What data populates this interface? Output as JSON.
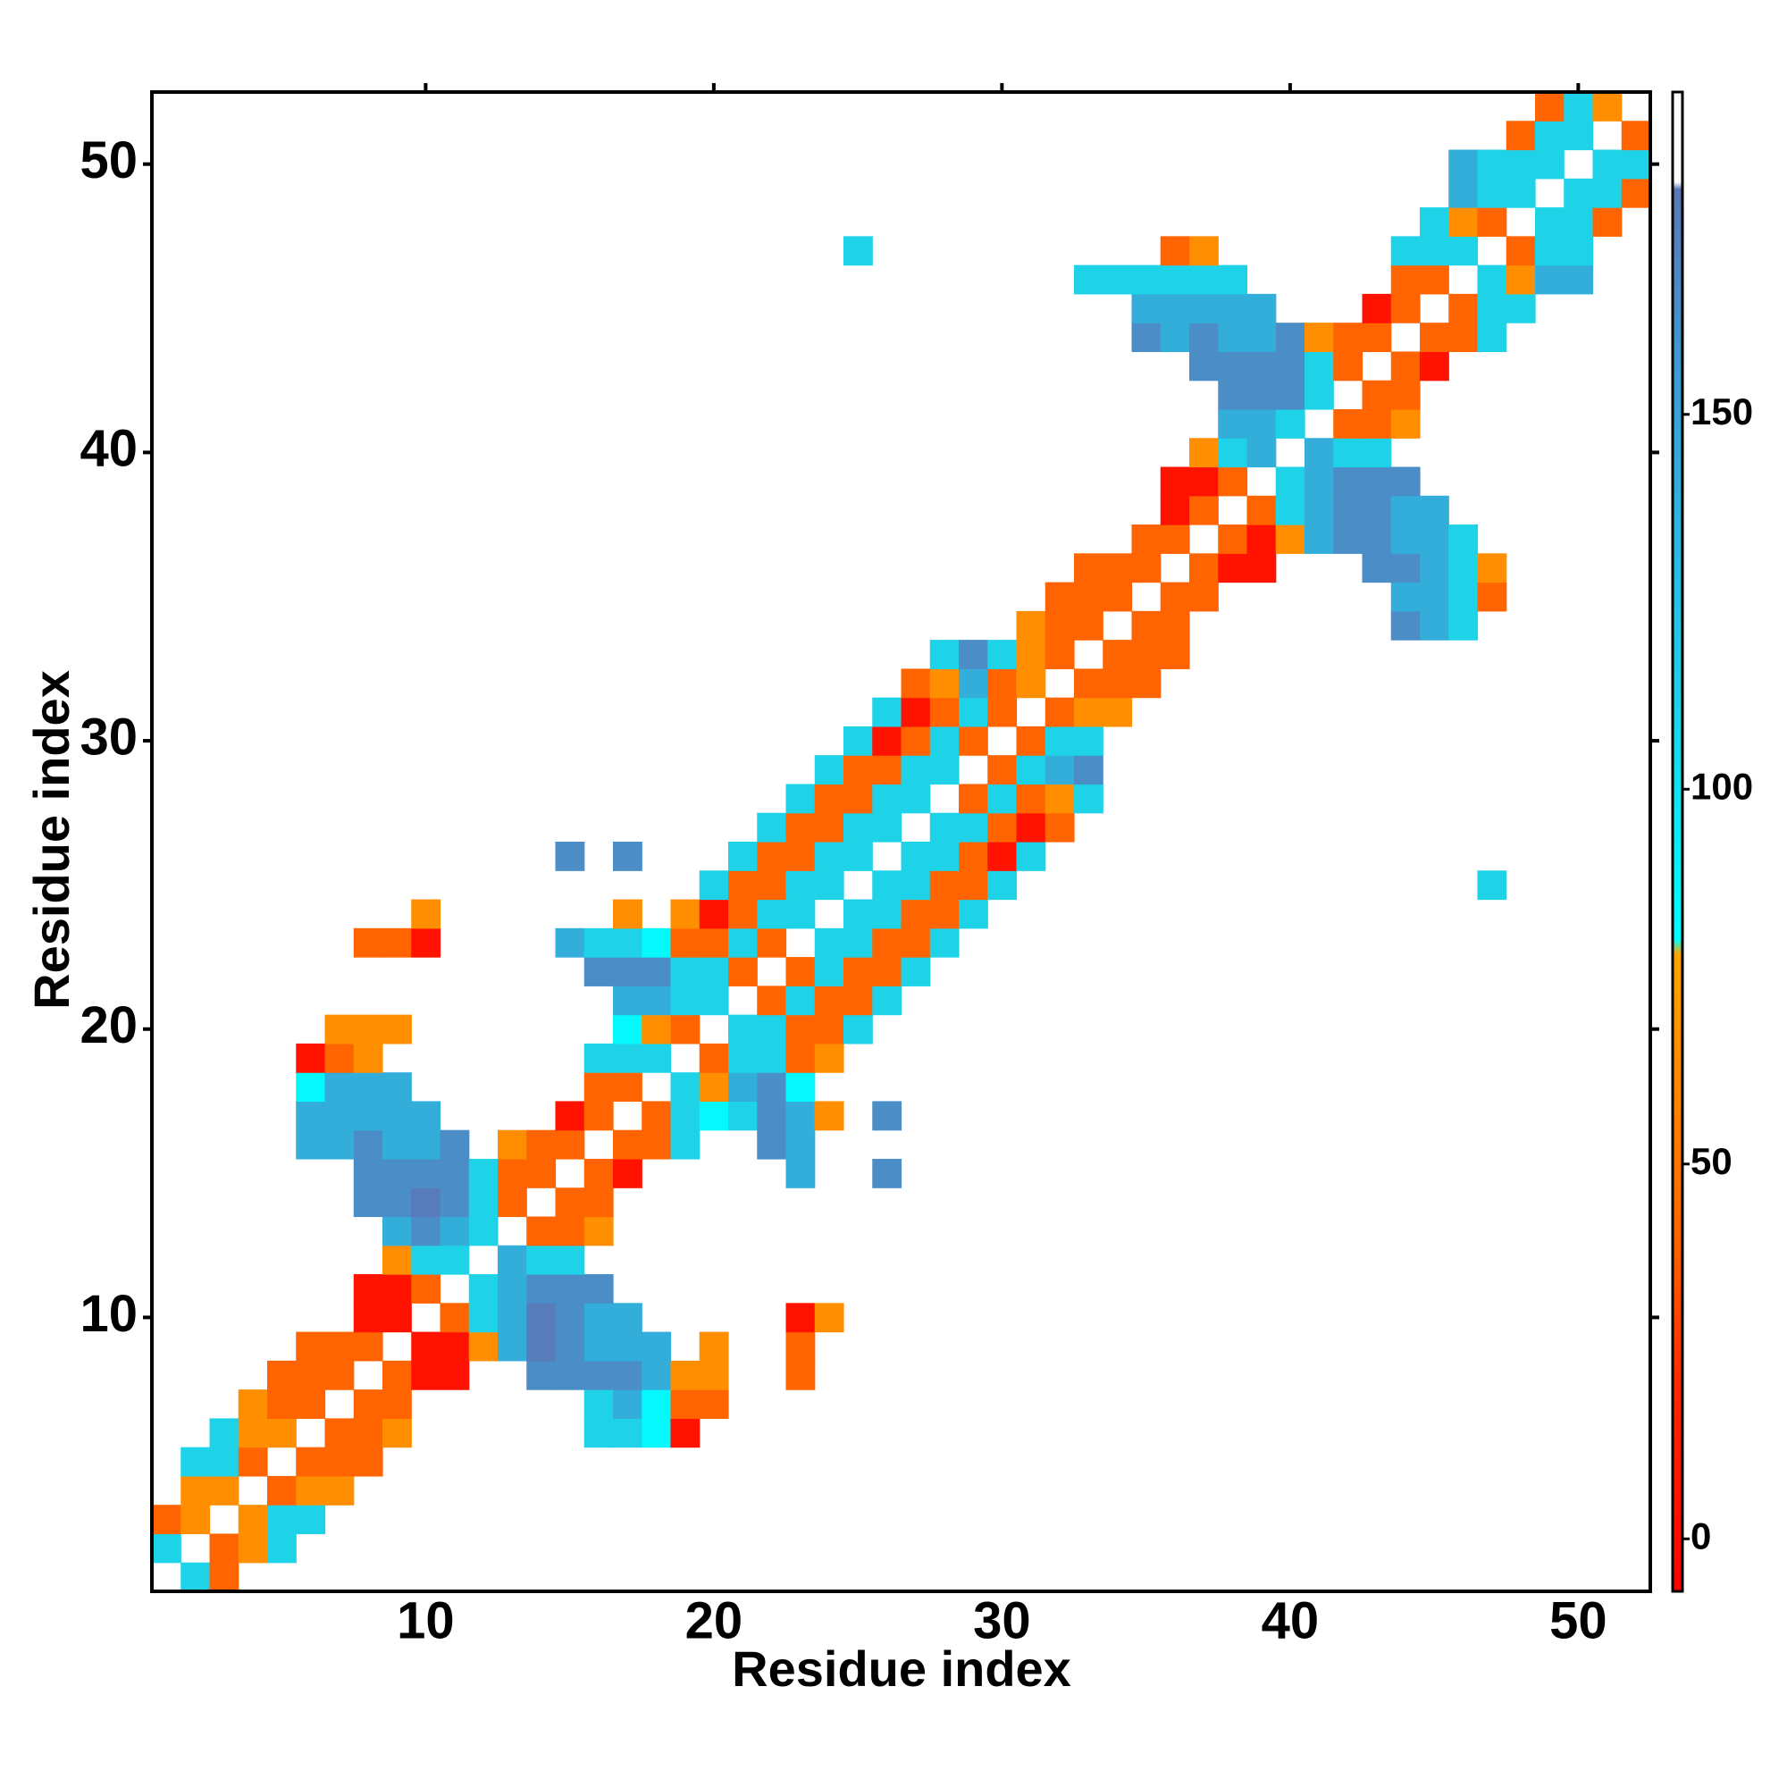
{
  "chart_data": {
    "type": "heatmap",
    "x_label": "Residue index",
    "y_label": "Residue index",
    "xlim": [
      0.5,
      52.5
    ],
    "ylim": [
      0.5,
      52.5
    ],
    "xticks": [
      10,
      20,
      30,
      40,
      50
    ],
    "yticks": [
      10,
      20,
      30,
      40,
      50
    ],
    "zlim": [
      -7,
      193
    ],
    "zticks": [
      0,
      50,
      100,
      150
    ],
    "colorscale": [
      [
        -7,
        "#ff0000"
      ],
      [
        20,
        "#ff2800"
      ],
      [
        40,
        "#ff6400"
      ],
      [
        78,
        "#ffa500"
      ],
      [
        80,
        "#00ffff"
      ],
      [
        110,
        "#1ed3e8"
      ],
      [
        150,
        "#3aa2d6"
      ],
      [
        180,
        "#5a78b8"
      ],
      [
        181,
        "#ffffff"
      ],
      [
        193,
        "#ffffff"
      ]
    ],
    "rows": [
      {
        "y": 1,
        "x": [
          2,
          3
        ],
        "values": [
          110,
          40
        ]
      },
      {
        "y": 2,
        "x": [
          1,
          3,
          4,
          5
        ],
        "values": [
          110,
          40,
          65,
          110
        ]
      },
      {
        "y": 3,
        "x": [
          1,
          2,
          4,
          5,
          6
        ],
        "values": [
          40,
          65,
          65,
          110,
          110
        ]
      },
      {
        "y": 4,
        "x": [
          2,
          3,
          5,
          6,
          7
        ],
        "values": [
          65,
          65,
          40,
          65,
          65
        ]
      },
      {
        "y": 5,
        "x": [
          2,
          3,
          4,
          6,
          7,
          8
        ],
        "values": [
          110,
          110,
          40,
          40,
          40,
          40
        ]
      },
      {
        "y": 6,
        "x": [
          3,
          4,
          5,
          7,
          8,
          9,
          16,
          17,
          18,
          19
        ],
        "values": [
          110,
          65,
          65,
          40,
          40,
          65,
          110,
          110,
          85,
          5
        ]
      },
      {
        "y": 7,
        "x": [
          4,
          5,
          6,
          8,
          9,
          16,
          17,
          18,
          19,
          20
        ],
        "values": [
          65,
          40,
          40,
          40,
          40,
          110,
          140,
          85,
          40,
          40
        ]
      },
      {
        "y": 8,
        "x": [
          5,
          6,
          7,
          9,
          10,
          11,
          14,
          15,
          16,
          17,
          18,
          19,
          20,
          23
        ],
        "values": [
          40,
          40,
          40,
          40,
          5,
          5,
          165,
          165,
          165,
          165,
          140,
          65,
          65,
          40
        ]
      },
      {
        "y": 9,
        "x": [
          6,
          7,
          8,
          10,
          11,
          12,
          13,
          14,
          15,
          16,
          17,
          18,
          20,
          23
        ],
        "values": [
          40,
          40,
          40,
          5,
          5,
          65,
          140,
          178,
          165,
          140,
          140,
          140,
          65,
          40
        ]
      },
      {
        "y": 10,
        "x": [
          8,
          9,
          11,
          12,
          13,
          14,
          15,
          16,
          17,
          23,
          24
        ],
        "values": [
          5,
          5,
          40,
          110,
          140,
          178,
          165,
          140,
          140,
          5,
          65
        ]
      },
      {
        "y": 11,
        "x": [
          8,
          9,
          10,
          12,
          13,
          14,
          15,
          16
        ],
        "values": [
          5,
          5,
          40,
          110,
          140,
          165,
          165,
          165
        ]
      },
      {
        "y": 12,
        "x": [
          9,
          10,
          11,
          13,
          14,
          15
        ],
        "values": [
          65,
          110,
          110,
          140,
          110,
          110
        ]
      },
      {
        "y": 13,
        "x": [
          9,
          10,
          11,
          12,
          14,
          15,
          16
        ],
        "values": [
          140,
          165,
          140,
          110,
          40,
          40,
          65
        ]
      },
      {
        "y": 14,
        "x": [
          8,
          9,
          10,
          11,
          12,
          13,
          15,
          16
        ],
        "values": [
          165,
          165,
          178,
          165,
          110,
          40,
          40,
          40
        ]
      },
      {
        "y": 15,
        "x": [
          8,
          9,
          10,
          11,
          12,
          13,
          14,
          16,
          17,
          23,
          26
        ],
        "values": [
          165,
          165,
          165,
          165,
          110,
          40,
          40,
          40,
          5,
          140,
          165
        ]
      },
      {
        "y": 16,
        "x": [
          6,
          7,
          8,
          9,
          10,
          11,
          13,
          14,
          15,
          17,
          18,
          19,
          22,
          23
        ],
        "values": [
          140,
          140,
          165,
          140,
          140,
          165,
          65,
          40,
          40,
          40,
          40,
          110,
          165,
          140
        ]
      },
      {
        "y": 17,
        "x": [
          6,
          7,
          8,
          9,
          10,
          15,
          16,
          18,
          19,
          20,
          21,
          22,
          23,
          24,
          26
        ],
        "values": [
          140,
          140,
          140,
          140,
          140,
          5,
          40,
          40,
          110,
          85,
          110,
          165,
          140,
          65,
          165
        ]
      },
      {
        "y": 18,
        "x": [
          6,
          7,
          8,
          9,
          16,
          17,
          19,
          20,
          21,
          22,
          23
        ],
        "values": [
          85,
          140,
          140,
          140,
          40,
          40,
          110,
          65,
          140,
          165,
          85
        ]
      },
      {
        "y": 19,
        "x": [
          6,
          7,
          8,
          16,
          17,
          18,
          20,
          21,
          22,
          23,
          24
        ],
        "values": [
          5,
          40,
          65,
          110,
          110,
          110,
          40,
          110,
          110,
          40,
          65
        ]
      },
      {
        "y": 20,
        "x": [
          7,
          8,
          9,
          17,
          18,
          19,
          21,
          22,
          23,
          24,
          25
        ],
        "values": [
          65,
          65,
          65,
          85,
          65,
          40,
          110,
          110,
          40,
          40,
          110
        ]
      },
      {
        "y": 21,
        "x": [
          17,
          18,
          19,
          20,
          22,
          23,
          24,
          25,
          26
        ],
        "values": [
          140,
          140,
          110,
          110,
          40,
          110,
          40,
          40,
          110
        ]
      },
      {
        "y": 22,
        "x": [
          16,
          17,
          18,
          19,
          20,
          21,
          23,
          24,
          25,
          26,
          27
        ],
        "values": [
          165,
          165,
          165,
          110,
          110,
          40,
          40,
          110,
          40,
          40,
          110
        ]
      },
      {
        "y": 23,
        "x": [
          8,
          9,
          10,
          15,
          16,
          17,
          18,
          19,
          20,
          21,
          22,
          24,
          25,
          26,
          27,
          28
        ],
        "values": [
          40,
          40,
          5,
          140,
          110,
          110,
          85,
          40,
          40,
          110,
          40,
          110,
          110,
          40,
          40,
          110
        ]
      },
      {
        "y": 24,
        "x": [
          10,
          17,
          19,
          20,
          21,
          22,
          23,
          25,
          26,
          27,
          28,
          29
        ],
        "values": [
          65,
          65,
          65,
          5,
          40,
          110,
          110,
          110,
          110,
          40,
          40,
          110
        ]
      },
      {
        "y": 25,
        "x": [
          20,
          21,
          22,
          23,
          24,
          26,
          27,
          28,
          29,
          30,
          47
        ],
        "values": [
          110,
          40,
          40,
          110,
          110,
          110,
          110,
          40,
          40,
          110,
          110
        ]
      },
      {
        "y": 26,
        "x": [
          15,
          17,
          21,
          22,
          23,
          24,
          25,
          27,
          28,
          29,
          30,
          31
        ],
        "values": [
          165,
          165,
          110,
          40,
          40,
          110,
          110,
          110,
          110,
          40,
          5,
          110
        ]
      },
      {
        "y": 27,
        "x": [
          22,
          23,
          24,
          25,
          26,
          28,
          29,
          30,
          31,
          32
        ],
        "values": [
          110,
          40,
          40,
          110,
          110,
          110,
          110,
          40,
          5,
          40
        ]
      },
      {
        "y": 28,
        "x": [
          23,
          24,
          25,
          26,
          27,
          29,
          30,
          31,
          32,
          33
        ],
        "values": [
          110,
          40,
          40,
          110,
          110,
          40,
          110,
          40,
          65,
          110
        ]
      },
      {
        "y": 29,
        "x": [
          24,
          25,
          26,
          27,
          28,
          30,
          31,
          32,
          33
        ],
        "values": [
          110,
          40,
          40,
          110,
          110,
          40,
          110,
          140,
          165
        ]
      },
      {
        "y": 30,
        "x": [
          25,
          26,
          27,
          28,
          29,
          31,
          32,
          33
        ],
        "values": [
          110,
          5,
          40,
          110,
          40,
          40,
          110,
          110
        ]
      },
      {
        "y": 31,
        "x": [
          26,
          27,
          28,
          29,
          30,
          32,
          33,
          34
        ],
        "values": [
          110,
          5,
          40,
          110,
          40,
          40,
          65,
          65
        ]
      },
      {
        "y": 32,
        "x": [
          27,
          28,
          29,
          30,
          31,
          33,
          34,
          35
        ],
        "values": [
          40,
          65,
          140,
          40,
          65,
          40,
          40,
          40
        ]
      },
      {
        "y": 33,
        "x": [
          28,
          29,
          30,
          31,
          32,
          34,
          35,
          36
        ],
        "values": [
          110,
          165,
          110,
          65,
          40,
          40,
          40,
          40
        ]
      },
      {
        "y": 34,
        "x": [
          31,
          32,
          33,
          35,
          36,
          44,
          45,
          46
        ],
        "values": [
          65,
          40,
          40,
          40,
          40,
          165,
          140,
          110
        ]
      },
      {
        "y": 35,
        "x": [
          32,
          33,
          34,
          36,
          37,
          44,
          45,
          46,
          47
        ],
        "values": [
          40,
          40,
          40,
          40,
          40,
          140,
          140,
          110,
          40
        ]
      },
      {
        "y": 36,
        "x": [
          33,
          34,
          35,
          37,
          38,
          39,
          43,
          44,
          45,
          46,
          47
        ],
        "values": [
          40,
          40,
          40,
          40,
          5,
          5,
          165,
          165,
          140,
          110,
          65
        ]
      },
      {
        "y": 37,
        "x": [
          35,
          36,
          38,
          39,
          40,
          41,
          42,
          43,
          44,
          45,
          46
        ],
        "values": [
          40,
          40,
          40,
          5,
          65,
          140,
          165,
          165,
          140,
          140,
          110
        ]
      },
      {
        "y": 38,
        "x": [
          36,
          37,
          39,
          40,
          41,
          42,
          43,
          44,
          45
        ],
        "values": [
          5,
          40,
          40,
          110,
          140,
          165,
          165,
          140,
          140
        ]
      },
      {
        "y": 39,
        "x": [
          36,
          37,
          38,
          40,
          41,
          42,
          43,
          44
        ],
        "values": [
          5,
          5,
          40,
          110,
          140,
          165,
          165,
          165
        ]
      },
      {
        "y": 40,
        "x": [
          37,
          38,
          39,
          41,
          42,
          43
        ],
        "values": [
          65,
          110,
          140,
          140,
          110,
          110
        ]
      },
      {
        "y": 41,
        "x": [
          38,
          39,
          40,
          42,
          43,
          44
        ],
        "values": [
          140,
          140,
          110,
          40,
          40,
          65
        ]
      },
      {
        "y": 42,
        "x": [
          38,
          39,
          40,
          41,
          43,
          44
        ],
        "values": [
          165,
          165,
          165,
          110,
          40,
          40
        ]
      },
      {
        "y": 43,
        "x": [
          37,
          38,
          39,
          40,
          41,
          42,
          44,
          45
        ],
        "values": [
          165,
          165,
          165,
          165,
          110,
          40,
          40,
          5
        ]
      },
      {
        "y": 44,
        "x": [
          35,
          36,
          37,
          38,
          39,
          40,
          41,
          42,
          43,
          45,
          46,
          47
        ],
        "values": [
          165,
          140,
          165,
          140,
          140,
          165,
          65,
          40,
          40,
          40,
          40,
          110
        ]
      },
      {
        "y": 45,
        "x": [
          35,
          36,
          37,
          38,
          39,
          43,
          44,
          46,
          47,
          48
        ],
        "values": [
          140,
          140,
          140,
          140,
          140,
          5,
          40,
          40,
          110,
          110
        ]
      },
      {
        "y": 46,
        "x": [
          33,
          34,
          35,
          36,
          37,
          38,
          44,
          45,
          47,
          48,
          49,
          50
        ],
        "values": [
          110,
          110,
          110,
          110,
          110,
          110,
          40,
          40,
          110,
          65,
          140,
          140
        ]
      },
      {
        "y": 47,
        "x": [
          25,
          36,
          37,
          44,
          45,
          46,
          48,
          49,
          50
        ],
        "values": [
          110,
          40,
          65,
          110,
          110,
          110,
          40,
          110,
          110
        ]
      },
      {
        "y": 48,
        "x": [
          45,
          46,
          47,
          49,
          50,
          51
        ],
        "values": [
          110,
          65,
          40,
          110,
          110,
          40
        ]
      },
      {
        "y": 49,
        "x": [
          46,
          47,
          48,
          50,
          51,
          52
        ],
        "values": [
          140,
          110,
          110,
          110,
          110,
          40
        ]
      },
      {
        "y": 50,
        "x": [
          46,
          47,
          48,
          49,
          51,
          52
        ],
        "values": [
          140,
          110,
          110,
          110,
          110,
          110
        ]
      },
      {
        "y": 51,
        "x": [
          48,
          49,
          50,
          52
        ],
        "values": [
          40,
          110,
          110,
          40
        ]
      },
      {
        "y": 52,
        "x": [
          49,
          50,
          51
        ],
        "values": [
          40,
          110,
          65
        ]
      }
    ]
  }
}
